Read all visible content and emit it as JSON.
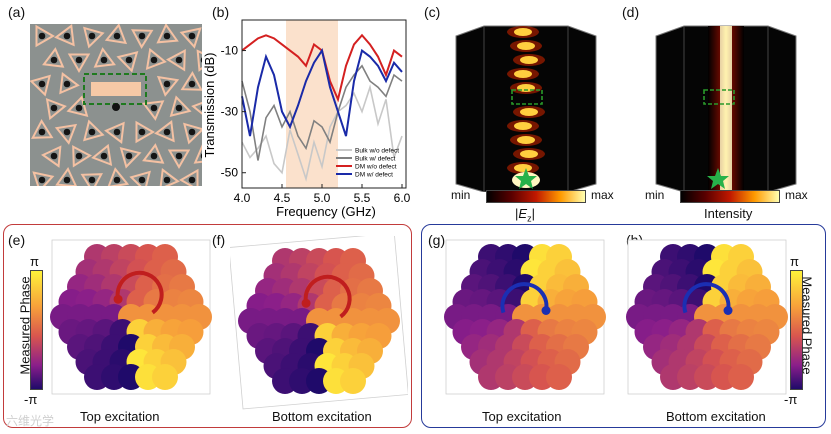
{
  "panels": {
    "a": "(a)",
    "b": "(b)",
    "c": "(c)",
    "d": "(d)",
    "e": "(e)",
    "f": "(f)",
    "g": "(g)",
    "h": "(h)"
  },
  "chart_data": {
    "type": "line",
    "title": "",
    "xlabel": "Frequency (GHz)",
    "ylabel": "Transmission (dB)",
    "xlim": [
      4.0,
      6.05
    ],
    "ylim": [
      -55,
      0
    ],
    "xticks": [
      "4.0",
      "4.5",
      "5.0",
      "5.5",
      "6.0"
    ],
    "yticks": [
      "-10",
      "-30",
      "-50"
    ],
    "shaded_band": [
      4.55,
      5.2
    ],
    "series": [
      {
        "name": "Bulk w/o defect",
        "color": "#c8c8c8",
        "x": [
          4.0,
          4.1,
          4.2,
          4.3,
          4.4,
          4.5,
          4.6,
          4.7,
          4.8,
          4.9,
          5.0,
          5.1,
          5.2,
          5.3,
          5.4,
          5.5,
          5.6,
          5.7,
          5.8,
          5.9,
          6.0
        ],
        "y": [
          -40,
          -45,
          -42,
          -38,
          -47,
          -50,
          -36,
          -44,
          -52,
          -40,
          -48,
          -35,
          -30,
          -28,
          -24,
          -30,
          -22,
          -34,
          -26,
          -45,
          -38
        ]
      },
      {
        "name": "Bulk w/ defect",
        "color": "#808080",
        "x": [
          4.0,
          4.1,
          4.2,
          4.3,
          4.4,
          4.5,
          4.6,
          4.7,
          4.8,
          4.9,
          5.0,
          5.1,
          5.2,
          5.3,
          5.4,
          5.5,
          5.6,
          5.7,
          5.8,
          5.9,
          6.0
        ],
        "y": [
          -20,
          -30,
          -46,
          -32,
          -28,
          -35,
          -30,
          -38,
          -42,
          -33,
          -35,
          -40,
          -30,
          -22,
          -18,
          -15,
          -20,
          -22,
          -25,
          -18,
          -20
        ]
      },
      {
        "name": "DM w/o defect",
        "color": "#d42020",
        "x": [
          4.0,
          4.1,
          4.2,
          4.3,
          4.4,
          4.5,
          4.6,
          4.7,
          4.8,
          4.9,
          5.0,
          5.1,
          5.2,
          5.3,
          5.4,
          5.5,
          5.6,
          5.7,
          5.8,
          5.9,
          6.0
        ],
        "y": [
          -10,
          -8,
          -6,
          -5,
          -6,
          -8,
          -10,
          -12,
          -15,
          -8,
          -10,
          -20,
          -26,
          -15,
          -8,
          -5,
          -8,
          -12,
          -18,
          -10,
          -12
        ]
      },
      {
        "name": "DM w/ defect",
        "color": "#1a2aa8",
        "x": [
          4.0,
          4.1,
          4.2,
          4.3,
          4.4,
          4.5,
          4.6,
          4.7,
          4.8,
          4.9,
          5.0,
          5.1,
          5.2,
          5.3,
          5.4,
          5.5,
          5.6,
          5.7,
          5.8,
          5.9,
          6.0
        ],
        "y": [
          -25,
          -38,
          -22,
          -12,
          -18,
          -30,
          -35,
          -28,
          -20,
          -14,
          -10,
          -22,
          -30,
          -38,
          -20,
          -10,
          -12,
          -15,
          -20,
          -14,
          -17
        ]
      }
    ]
  },
  "colorbars": {
    "c": {
      "min": "min",
      "max": "max",
      "label": "|Ez|"
    },
    "d": {
      "min": "min",
      "max": "max",
      "label": "Intensity"
    }
  },
  "phase_colorbar": {
    "title": "Measured Phase",
    "top": "π",
    "bottom": "-π"
  },
  "captions": {
    "e": "Top excitation",
    "f": "Bottom excitation",
    "g": "Top excitation",
    "h": "Bottom excitation"
  },
  "watermark": "六维光学"
}
